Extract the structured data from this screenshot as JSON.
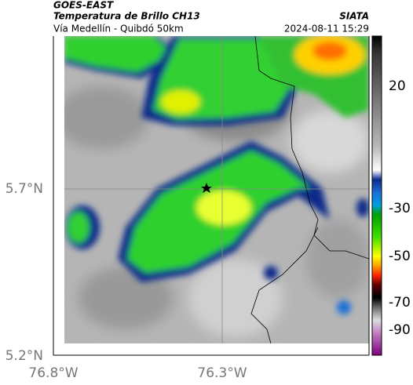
{
  "header": {
    "satellite": "GOES-EAST",
    "product": "Temperatura de Brillo CH13",
    "source": "SIATA",
    "route": "Vía Medellín - Quibdó 50km",
    "datetime": "2024-08-11 15:29"
  },
  "axes": {
    "lat_labels": [
      "5.7°N",
      "5.2°N"
    ],
    "lon_labels": [
      "76.8°W",
      "76.3°W"
    ]
  },
  "colorbar": {
    "ticks": [
      "20",
      "-30",
      "-50",
      "-70",
      "-90"
    ]
  }
}
